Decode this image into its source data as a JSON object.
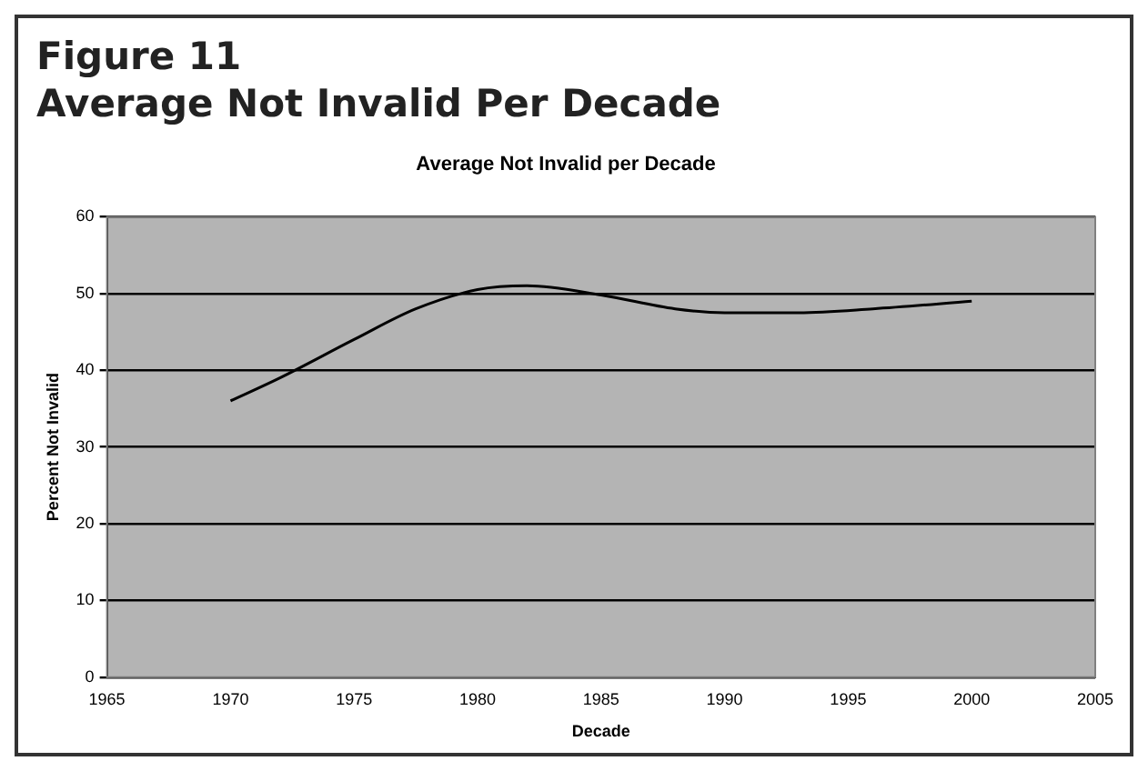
{
  "chart_data": {
    "type": "line",
    "title": "Average Not Invalid per Decade",
    "annotations": [
      "Figure 11",
      "Average Not Invalid Per Decade"
    ],
    "xlabel": "Decade",
    "ylabel": "Percent Not Invalid",
    "x": [
      1970,
      1972,
      1975,
      1977.5,
      1980,
      1982,
      1985,
      1988,
      1990,
      1993,
      1996,
      2000
    ],
    "series": [
      {
        "color": "#000000",
        "values": [
          36,
          39,
          44,
          48,
          50.5,
          51,
          49.8,
          48,
          47.5,
          47.5,
          48,
          49
        ]
      }
    ],
    "xlim": [
      1965,
      2005
    ],
    "xticks": [
      1965,
      1970,
      1975,
      1980,
      1985,
      1990,
      1995,
      2000,
      2005
    ],
    "ylim": [
      0,
      60
    ],
    "yticks": [
      0,
      10,
      20,
      30,
      40,
      50,
      60
    ],
    "grid": "y",
    "legend": false,
    "marker": "none",
    "line_style": "solid"
  }
}
